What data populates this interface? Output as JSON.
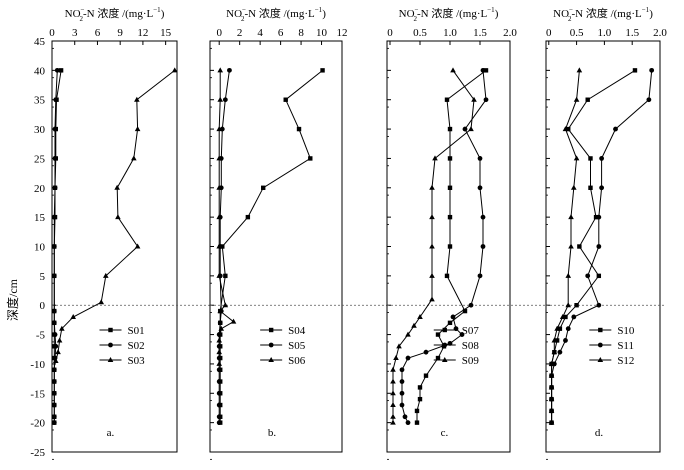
{
  "figure": {
    "y_axis_label": "深度/cm",
    "y_ticks": [
      45,
      40,
      35,
      30,
      25,
      20,
      15,
      10,
      5,
      0,
      -5,
      -10,
      -15,
      -20,
      -25
    ],
    "ylim": [
      -25,
      45
    ]
  },
  "chart_data": [
    {
      "type": "line",
      "panel_label": "a.",
      "top_label": "NO2−-N 浓度 /(mg·L−1)",
      "title_main": "NO",
      "title_rest": "-N 浓度 /(mg·L",
      "title_sup": "−1",
      "title_close": ")",
      "xlim": [
        0,
        16.5
      ],
      "x_ticks": [
        0,
        3,
        6,
        9,
        12,
        15
      ],
      "x_tick_labels": [
        "0",
        "3",
        "6",
        "9",
        "12",
        "15"
      ],
      "legend": [
        "S01",
        "S02",
        "S03"
      ],
      "series": [
        {
          "name": "S01",
          "marker": "square",
          "points": [
            [
              1.2,
              40
            ],
            [
              0.6,
              35
            ],
            [
              0.5,
              30
            ],
            [
              0.5,
              25
            ],
            [
              0.4,
              20
            ],
            [
              0.4,
              15
            ],
            [
              0.3,
              10
            ],
            [
              0.3,
              5
            ],
            [
              0.3,
              -1
            ],
            [
              0.3,
              -3
            ],
            [
              0.3,
              -5
            ],
            [
              0.3,
              -7
            ],
            [
              0.3,
              -9
            ],
            [
              0.3,
              -11
            ],
            [
              0.3,
              -13
            ],
            [
              0.3,
              -15
            ],
            [
              0.3,
              -17
            ],
            [
              0.3,
              -19
            ],
            [
              0.3,
              -20
            ]
          ]
        },
        {
          "name": "S02",
          "marker": "circle",
          "points": [
            [
              0.7,
              40
            ],
            [
              0.5,
              35
            ],
            [
              0.4,
              30
            ],
            [
              0.4,
              25
            ],
            [
              0.4,
              20
            ],
            [
              0.3,
              15
            ],
            [
              0.3,
              10
            ],
            [
              0.3,
              5
            ],
            [
              0.3,
              -1
            ],
            [
              0.3,
              -3
            ],
            [
              0.4,
              -5
            ],
            [
              0.5,
              -7
            ],
            [
              0.4,
              -9
            ],
            [
              0.3,
              -11
            ],
            [
              0.3,
              -13
            ],
            [
              0.3,
              -15
            ],
            [
              0.3,
              -17
            ],
            [
              0.3,
              -19
            ],
            [
              0.3,
              -20
            ]
          ]
        },
        {
          "name": "S03",
          "marker": "triangle",
          "points": [
            [
              16.2,
              40
            ],
            [
              11.2,
              35
            ],
            [
              11.3,
              30
            ],
            [
              10.8,
              25
            ],
            [
              8.6,
              20
            ],
            [
              8.7,
              15
            ],
            [
              11.3,
              10
            ],
            [
              7.1,
              5
            ],
            [
              6.5,
              0.5
            ],
            [
              2.8,
              -2
            ],
            [
              1.3,
              -4
            ],
            [
              1.0,
              -6
            ],
            [
              0.8,
              -8
            ],
            [
              0.5,
              -9.5
            ]
          ]
        }
      ]
    },
    {
      "type": "line",
      "panel_label": "b.",
      "top_label": "NO2−-N 浓度 /(mg·L−1)",
      "title_main": "NO",
      "title_rest": "-N 浓度 /(mg·L",
      "title_sup": "−1",
      "title_close": ")",
      "xlim": [
        -0.9,
        12
      ],
      "x_ticks": [
        0,
        2,
        4,
        6,
        8,
        10,
        12
      ],
      "x_tick_labels": [
        "0",
        "2",
        "4",
        "6",
        "8",
        "10",
        "12"
      ],
      "legend": [
        "S04",
        "S05",
        "S06"
      ],
      "series": [
        {
          "name": "S04",
          "marker": "square",
          "points": [
            [
              10.1,
              40
            ],
            [
              6.5,
              35
            ],
            [
              7.8,
              30
            ],
            [
              8.9,
              25
            ],
            [
              4.3,
              20
            ],
            [
              2.8,
              15
            ],
            [
              0.3,
              10
            ],
            [
              0.6,
              5
            ],
            [
              0.1,
              -1
            ],
            [
              0.1,
              -3
            ],
            [
              0.1,
              -5
            ],
            [
              0.1,
              -7
            ],
            [
              0.1,
              -9
            ],
            [
              0.1,
              -11
            ],
            [
              0.1,
              -13
            ],
            [
              0.1,
              -15
            ],
            [
              0.1,
              -17
            ],
            [
              0.1,
              -19
            ],
            [
              0.1,
              -20
            ]
          ]
        },
        {
          "name": "S05",
          "marker": "circle",
          "points": [
            [
              1.0,
              40
            ],
            [
              0.6,
              35
            ],
            [
              0.3,
              30
            ],
            [
              0.2,
              25
            ],
            [
              0.2,
              20
            ],
            [
              0.1,
              15
            ],
            [
              0.1,
              10
            ],
            [
              0.1,
              5
            ],
            [
              0.2,
              -1
            ],
            [
              0.1,
              -3
            ],
            [
              0.0,
              -5
            ],
            [
              0.0,
              -7
            ],
            [
              0.0,
              -9
            ],
            [
              0.0,
              -11
            ],
            [
              0.0,
              -13
            ],
            [
              0.0,
              -15
            ],
            [
              0.0,
              -17
            ],
            [
              0.0,
              -19
            ],
            [
              0.0,
              -20
            ]
          ]
        },
        {
          "name": "S06",
          "marker": "triangle",
          "points": [
            [
              0.1,
              40
            ],
            [
              0.1,
              35
            ],
            [
              0.0,
              30
            ],
            [
              0.0,
              25
            ],
            [
              0.0,
              20
            ],
            [
              0.0,
              15
            ],
            [
              0.0,
              10
            ],
            [
              0.0,
              5
            ],
            [
              0.6,
              0
            ],
            [
              0.1,
              -1
            ],
            [
              1.4,
              -2.8
            ],
            [
              0.2,
              -4
            ],
            [
              0.0,
              -6
            ],
            [
              0.0,
              -8
            ],
            [
              0.0,
              -10
            ]
          ]
        }
      ]
    },
    {
      "type": "line",
      "panel_label": "c.",
      "top_label": "NO2−-N 浓度 /(mg·L−1)",
      "title_main": "NO",
      "title_rest": "-N 浓度 /(mg·L",
      "title_sup": "−1",
      "title_close": ")",
      "xlim": [
        -0.05,
        2.0
      ],
      "x_ticks": [
        0,
        0.5,
        1.0,
        1.5,
        2.0
      ],
      "x_tick_labels": [
        "0",
        "0.5",
        "1.0",
        "1.5",
        "2.0"
      ],
      "legend": [
        "S07",
        "S08",
        "S09"
      ],
      "series": [
        {
          "name": "S07",
          "marker": "square",
          "points": [
            [
              1.6,
              40
            ],
            [
              0.95,
              35
            ],
            [
              1.0,
              30
            ],
            [
              1.0,
              25
            ],
            [
              1.0,
              20
            ],
            [
              1.0,
              15
            ],
            [
              1.0,
              10
            ],
            [
              0.95,
              5
            ],
            [
              1.25,
              -1
            ],
            [
              1.0,
              -3
            ],
            [
              0.8,
              -5
            ],
            [
              0.9,
              -7
            ],
            [
              0.8,
              -9
            ],
            [
              0.6,
              -12
            ],
            [
              0.5,
              -14
            ],
            [
              0.5,
              -16
            ],
            [
              0.45,
              -18
            ],
            [
              0.45,
              -20
            ]
          ]
        },
        {
          "name": "S08",
          "marker": "circle",
          "points": [
            [
              1.55,
              40
            ],
            [
              1.6,
              35
            ],
            [
              1.25,
              30
            ],
            [
              1.5,
              25
            ],
            [
              1.5,
              20
            ],
            [
              1.55,
              15
            ],
            [
              1.55,
              10
            ],
            [
              1.5,
              5
            ],
            [
              1.35,
              0
            ],
            [
              1.05,
              -2
            ],
            [
              1.1,
              -4
            ],
            [
              1.2,
              -5
            ],
            [
              1.0,
              -6.5
            ],
            [
              0.6,
              -8
            ],
            [
              0.3,
              -9
            ],
            [
              0.2,
              -11
            ],
            [
              0.2,
              -13
            ],
            [
              0.2,
              -15
            ],
            [
              0.2,
              -17
            ],
            [
              0.25,
              -19
            ],
            [
              0.3,
              -20
            ]
          ]
        },
        {
          "name": "S09",
          "marker": "triangle",
          "points": [
            [
              1.05,
              40
            ],
            [
              1.4,
              35
            ],
            [
              1.35,
              30
            ],
            [
              0.75,
              25
            ],
            [
              0.7,
              20
            ],
            [
              0.7,
              15
            ],
            [
              0.7,
              10
            ],
            [
              0.7,
              5
            ],
            [
              0.7,
              1
            ],
            [
              0.5,
              -2
            ],
            [
              0.4,
              -3.5
            ],
            [
              0.3,
              -5
            ],
            [
              0.15,
              -7
            ],
            [
              0.1,
              -9
            ],
            [
              0.05,
              -11
            ],
            [
              0.05,
              -13
            ],
            [
              0.05,
              -15
            ],
            [
              0.05,
              -17
            ],
            [
              0.05,
              -19
            ],
            [
              0.05,
              -20
            ]
          ]
        }
      ]
    },
    {
      "type": "line",
      "panel_label": "d.",
      "top_label": "NO2−-N 浓度 /(mg·L−1)",
      "title_main": "NO",
      "title_rest": "-N 浓度 /(mg·L",
      "title_sup": "−1",
      "title_close": ")",
      "xlim": [
        -0.05,
        2.0
      ],
      "x_ticks": [
        0,
        0.5,
        1.0,
        1.5,
        2.0
      ],
      "x_tick_labels": [
        "0",
        "0.5",
        "1.0",
        "1.5",
        "2.0"
      ],
      "legend": [
        "S10",
        "S11",
        "S12"
      ],
      "series": [
        {
          "name": "S10",
          "marker": "square",
          "points": [
            [
              1.55,
              40
            ],
            [
              0.7,
              35
            ],
            [
              0.35,
              30
            ],
            [
              0.75,
              25
            ],
            [
              0.75,
              20
            ],
            [
              0.85,
              15
            ],
            [
              0.55,
              10
            ],
            [
              0.9,
              5
            ],
            [
              0.5,
              0
            ],
            [
              0.3,
              -2
            ],
            [
              0.2,
              -4
            ],
            [
              0.15,
              -6
            ],
            [
              0.1,
              -8
            ],
            [
              0.05,
              -10
            ],
            [
              0.05,
              -12
            ],
            [
              0.05,
              -14
            ],
            [
              0.05,
              -16
            ],
            [
              0.05,
              -18
            ],
            [
              0.05,
              -20
            ]
          ]
        },
        {
          "name": "S11",
          "marker": "circle",
          "points": [
            [
              1.85,
              40
            ],
            [
              1.8,
              35
            ],
            [
              1.2,
              30
            ],
            [
              0.95,
              25
            ],
            [
              0.95,
              20
            ],
            [
              0.9,
              15
            ],
            [
              0.9,
              10
            ],
            [
              0.7,
              5
            ],
            [
              0.9,
              0
            ],
            [
              0.45,
              -2
            ],
            [
              0.35,
              -4
            ],
            [
              0.3,
              -6
            ],
            [
              0.2,
              -8
            ],
            [
              0.1,
              -10
            ],
            [
              0.05,
              -12
            ],
            [
              0.05,
              -14
            ],
            [
              0.05,
              -16
            ],
            [
              0.05,
              -18
            ],
            [
              0.05,
              -20
            ]
          ]
        },
        {
          "name": "S12",
          "marker": "triangle",
          "points": [
            [
              0.55,
              40
            ],
            [
              0.5,
              35
            ],
            [
              0.3,
              30
            ],
            [
              0.5,
              25
            ],
            [
              0.45,
              20
            ],
            [
              0.4,
              15
            ],
            [
              0.4,
              10
            ],
            [
              0.35,
              5
            ],
            [
              0.35,
              0
            ],
            [
              0.25,
              -2
            ],
            [
              0.15,
              -4
            ],
            [
              0.1,
              -6
            ],
            [
              0.1,
              -8
            ],
            [
              0.05,
              -10
            ],
            [
              0.05,
              -12
            ],
            [
              0.05,
              -14
            ],
            [
              0.05,
              -16
            ],
            [
              0.05,
              -18
            ],
            [
              0.05,
              -20
            ]
          ]
        }
      ]
    }
  ]
}
